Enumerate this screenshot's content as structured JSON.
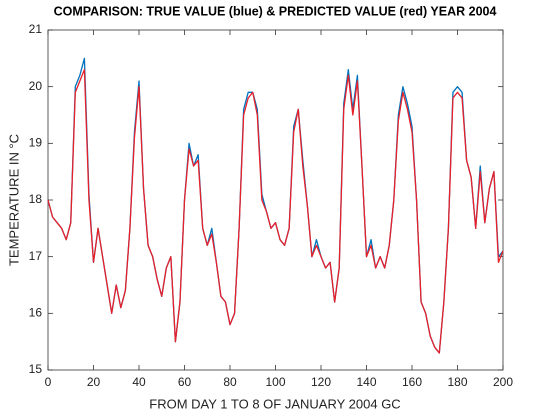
{
  "chart_data": {
    "type": "line",
    "title": "COMPARISON: TRUE VALUE (blue) & PREDICTED VALUE (red) YEAR 2004",
    "x_label": "FROM DAY 1 TO 8 OF JANUARY 2004 GC",
    "y_label": "TEMPERATURE IN °C",
    "x": [
      0,
      2,
      4,
      6,
      8,
      10,
      12,
      14,
      16,
      18,
      20,
      22,
      24,
      26,
      28,
      30,
      32,
      34,
      36,
      38,
      40,
      42,
      44,
      46,
      48,
      50,
      52,
      54,
      56,
      58,
      60,
      62,
      64,
      66,
      68,
      70,
      72,
      74,
      76,
      78,
      80,
      82,
      84,
      86,
      88,
      90,
      92,
      94,
      96,
      98,
      100,
      102,
      104,
      106,
      108,
      110,
      112,
      114,
      116,
      118,
      120,
      122,
      124,
      126,
      128,
      130,
      132,
      134,
      136,
      138,
      140,
      142,
      144,
      146,
      148,
      150,
      152,
      154,
      156,
      158,
      160,
      162,
      164,
      166,
      168,
      170,
      172,
      174,
      176,
      178,
      180,
      182,
      184,
      186,
      188,
      190,
      192,
      194,
      196,
      198,
      200
    ],
    "series": [
      {
        "name": "TRUE VALUE",
        "color": "#0072bd",
        "values": [
          18.0,
          17.7,
          17.6,
          17.5,
          17.3,
          17.6,
          20.0,
          20.2,
          20.5,
          18.1,
          16.9,
          17.5,
          17.0,
          16.5,
          16.0,
          16.5,
          16.1,
          16.4,
          17.5,
          19.2,
          20.1,
          18.2,
          17.2,
          17.0,
          16.6,
          16.3,
          16.8,
          17.0,
          15.5,
          16.2,
          18.0,
          19.0,
          18.6,
          18.8,
          17.5,
          17.2,
          17.5,
          16.9,
          16.3,
          16.2,
          15.8,
          16.0,
          17.5,
          19.6,
          19.9,
          19.9,
          19.6,
          18.1,
          17.8,
          17.5,
          17.6,
          17.3,
          17.2,
          17.5,
          19.3,
          19.6,
          18.7,
          17.9,
          17.0,
          17.3,
          17.0,
          16.8,
          16.9,
          16.2,
          16.8,
          19.7,
          20.3,
          19.6,
          20.2,
          18.6,
          17.0,
          17.3,
          16.8,
          17.0,
          16.8,
          17.2,
          18.0,
          19.5,
          20.0,
          19.7,
          19.3,
          18.0,
          16.2,
          16.0,
          15.6,
          15.4,
          15.3,
          16.2,
          17.5,
          19.9,
          20.0,
          19.9,
          18.7,
          18.4,
          17.5,
          18.6,
          17.6,
          18.2,
          18.5,
          17.0,
          17.1
        ]
      },
      {
        "name": "PREDICTED VALUE",
        "color": "#e8202a",
        "values": [
          18.0,
          17.7,
          17.6,
          17.5,
          17.3,
          17.6,
          19.9,
          20.1,
          20.3,
          18.0,
          16.9,
          17.5,
          17.0,
          16.5,
          16.0,
          16.5,
          16.1,
          16.4,
          17.5,
          19.1,
          20.0,
          18.2,
          17.2,
          17.0,
          16.6,
          16.3,
          16.8,
          17.0,
          15.5,
          16.2,
          18.0,
          18.9,
          18.6,
          18.7,
          17.5,
          17.2,
          17.4,
          16.9,
          16.3,
          16.2,
          15.8,
          16.0,
          17.5,
          19.5,
          19.8,
          19.9,
          19.5,
          18.0,
          17.8,
          17.5,
          17.6,
          17.3,
          17.2,
          17.5,
          19.2,
          19.6,
          18.6,
          17.9,
          17.0,
          17.2,
          17.0,
          16.8,
          16.9,
          16.2,
          16.8,
          19.6,
          20.2,
          19.5,
          20.1,
          18.6,
          17.0,
          17.2,
          16.8,
          17.0,
          16.8,
          17.2,
          18.0,
          19.4,
          19.9,
          19.6,
          19.2,
          18.0,
          16.2,
          16.0,
          15.6,
          15.4,
          15.3,
          16.2,
          17.5,
          19.8,
          19.9,
          19.8,
          18.7,
          18.4,
          17.5,
          18.5,
          17.6,
          18.2,
          18.5,
          16.9,
          17.1
        ]
      }
    ],
    "xlim": [
      0,
      200
    ],
    "xticks": [
      0,
      20,
      40,
      60,
      80,
      100,
      120,
      140,
      160,
      180,
      200
    ],
    "ylim": [
      15,
      21
    ],
    "yticks": [
      15,
      16,
      17,
      18,
      19,
      20,
      21
    ]
  }
}
